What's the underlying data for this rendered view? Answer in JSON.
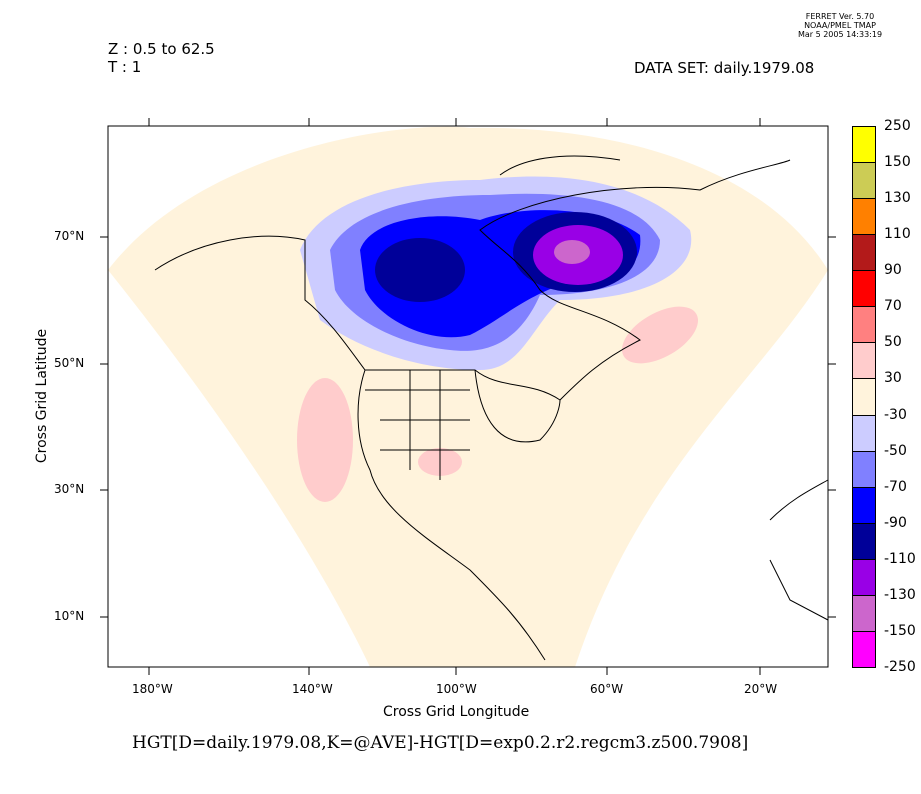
{
  "stamp": {
    "line1": "FERRET Ver. 5.70",
    "line2": "NOAA/PMEL TMAP",
    "line3": "Mar  5 2005 14:33:19"
  },
  "header": {
    "z": "Z : 0.5 to 62.5",
    "t": "T : 1",
    "dataset": "DATA SET: daily.1979.08"
  },
  "axes": {
    "xlabel": "Cross Grid Longitude",
    "ylabel": "Cross Grid Latitude",
    "xticks": [
      "180°W",
      "140°W",
      "100°W",
      "60°W",
      "20°W"
    ],
    "yticks": [
      "70°N",
      "50°N",
      "30°N",
      "10°N"
    ]
  },
  "title": "HGT[D=daily.1979.08,K=@AVE]-HGT[D=exp0.2.r2.regcm3.z500.7908]",
  "colorbar": {
    "levels": [
      "250",
      "150",
      "130",
      "110",
      "90",
      "70",
      "50",
      "30",
      "-30",
      "-50",
      "-70",
      "-90",
      "-110",
      "-130",
      "-150",
      "-250"
    ],
    "colors": [
      "#ffff00",
      "#cccc55",
      "#ff8000",
      "#b31a1a",
      "#ff0000",
      "#ff8080",
      "#ffcccc",
      "#fff3dc",
      "#ccccff",
      "#8080ff",
      "#0000ff",
      "#000099",
      "#9900e6",
      "#cc66cc",
      "#ff00ff"
    ]
  }
}
